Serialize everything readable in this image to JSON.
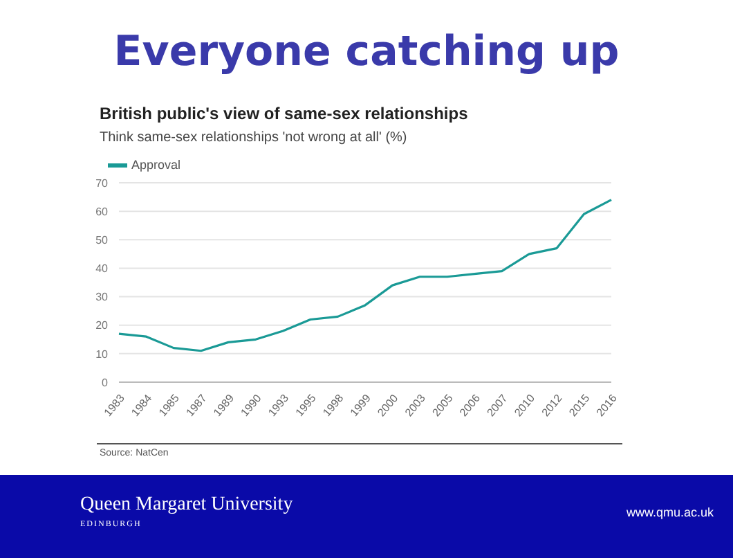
{
  "chart_data": {
    "type": "line",
    "title": "Everyone catching up",
    "subtitle": "British public's view of same-sex relationships",
    "ylabel": "Think same-sex relationships 'not wrong at all' (%)",
    "categories": [
      "1983",
      "1984",
      "1985",
      "1987",
      "1989",
      "1990",
      "1993",
      "1995",
      "1998",
      "1999",
      "2000",
      "2003",
      "2005",
      "2006",
      "2007",
      "2010",
      "2012",
      "2015",
      "2016"
    ],
    "series": [
      {
        "name": "Approval",
        "color": "#1a9a96",
        "values": [
          17,
          16,
          12,
          11,
          14,
          15,
          18,
          22,
          23,
          27,
          34,
          37,
          37,
          38,
          39,
          45,
          47,
          59,
          64
        ]
      }
    ],
    "ylim": [
      0,
      70
    ],
    "yticks": [
      0,
      10,
      20,
      30,
      40,
      50,
      60,
      70
    ],
    "grid": "y",
    "legend": "top left",
    "marker": "none",
    "line_style": "solid",
    "annotations": [
      "Source: NatCen",
      "Queen Margaret University",
      "EDINBURGH",
      "www.qmu.ac.uk"
    ]
  }
}
